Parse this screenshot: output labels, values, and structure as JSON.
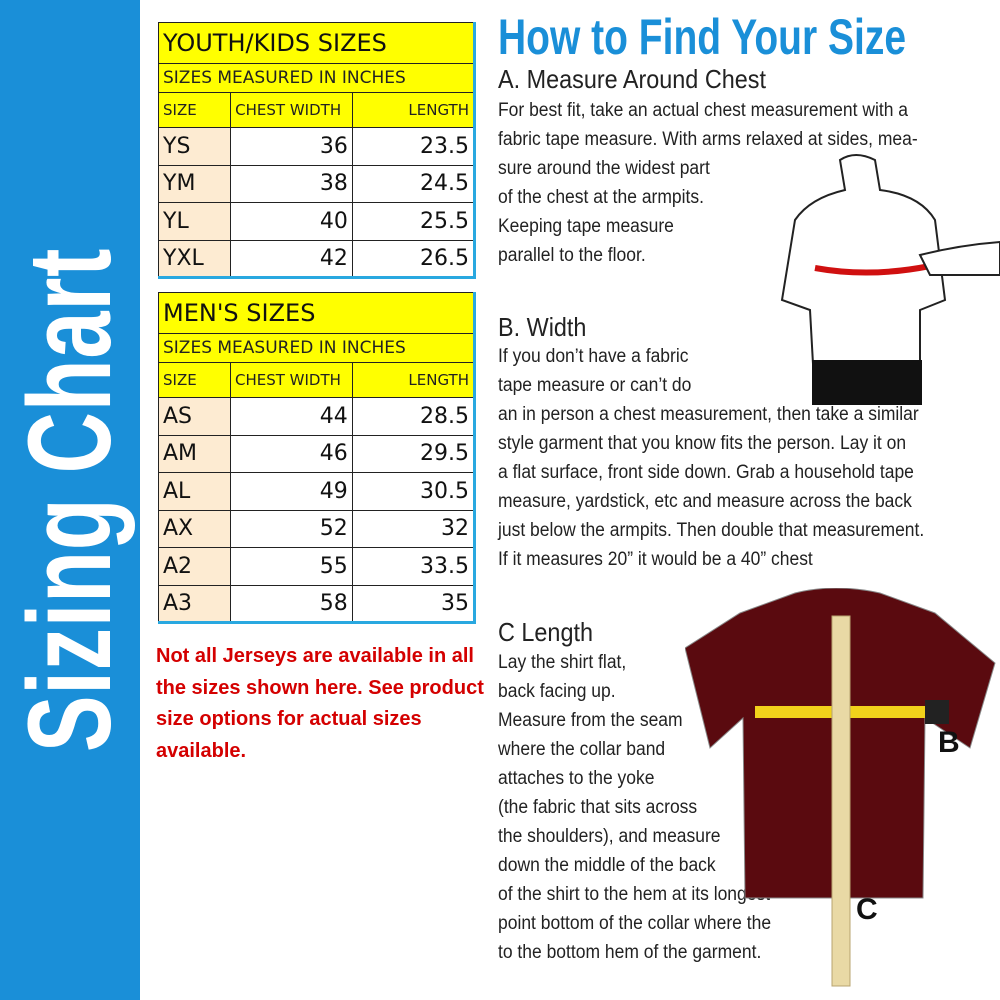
{
  "sidebar": {
    "title": "Sizing Chart",
    "color": "#1a8fd8"
  },
  "youth": {
    "title": "YOUTH/KIDS SIZES",
    "subtitle": "SIZES MEASURED IN INCHES",
    "headers": [
      "SIZE",
      "CHEST WIDTH",
      "LENGTH"
    ],
    "rows": [
      [
        "YS",
        "36",
        "23.5"
      ],
      [
        "YM",
        "38",
        "24.5"
      ],
      [
        "YL",
        "40",
        "25.5"
      ],
      [
        "YXL",
        "42",
        "26.5"
      ]
    ]
  },
  "men": {
    "title": "MEN'S SIZES",
    "subtitle": "SIZES MEASURED IN INCHES",
    "headers": [
      "SIZE",
      "CHEST WIDTH",
      "LENGTH"
    ],
    "rows": [
      [
        "AS",
        "44",
        "28.5"
      ],
      [
        "AM",
        "46",
        "29.5"
      ],
      [
        "AL",
        "49",
        "30.5"
      ],
      [
        "AX",
        "52",
        "32"
      ],
      [
        "A2",
        "55",
        "33.5"
      ],
      [
        "A3",
        "58",
        "35"
      ]
    ]
  },
  "note": "Not all Jerseys are available in all the sizes shown here. See product size options for actual sizes available.",
  "guide": {
    "heading": "How to Find Your Size",
    "a": {
      "title": "A. Measure Around Chest",
      "lines": [
        "For best fit, take an actual chest measurement with a",
        "fabric tape measure. With arms relaxed at sides, mea-",
        "sure around the widest part",
        "of the chest at the armpits.",
        "Keeping tape measure",
        "parallel to the floor."
      ]
    },
    "b": {
      "title": "B. Width",
      "lines": [
        "If you don’t have a fabric",
        "tape measure or can’t do",
        "an in person a chest measurement, then take a similar",
        "style garment that you know fits the person. Lay it on",
        "a flat surface, front side down. Grab a household tape",
        "measure, yardstick, etc and measure across the back",
        "just below the armpits. Then double that measurement.",
        "If it measures 20” it would be a 40” chest"
      ]
    },
    "c": {
      "title": "C Length",
      "lines": [
        "Lay the shirt flat,",
        "back facing up.",
        "Measure from the seam",
        "where the collar band",
        "attaches to the yoke",
        "(the fabric that sits across",
        "the shoulders), and measure",
        "down the middle of the back",
        "of the shirt to the hem at its longest",
        "point bottom of the collar where the",
        "to the bottom hem of the garment."
      ]
    },
    "label_b": "B",
    "label_c": "C"
  }
}
